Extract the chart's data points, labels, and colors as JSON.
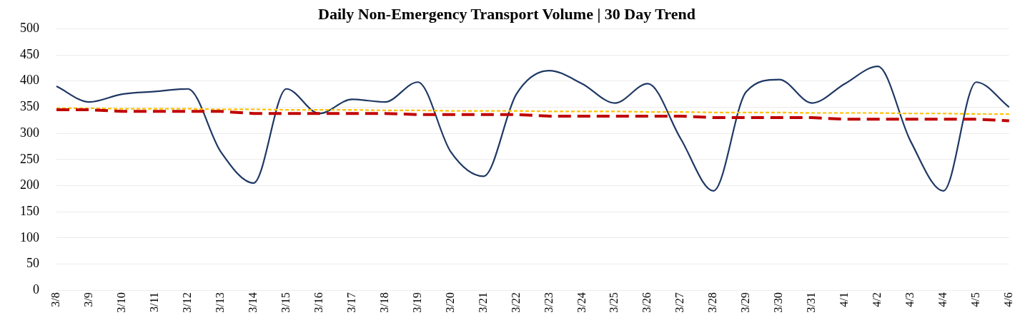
{
  "chart_data": {
    "type": "line",
    "title": "Daily Non-Emergency Transport Volume | 30 Day Trend",
    "categories": [
      "3/8",
      "3/9",
      "3/10",
      "3/11",
      "3/12",
      "3/13",
      "3/14",
      "3/15",
      "3/16",
      "3/17",
      "3/18",
      "3/19",
      "3/20",
      "3/21",
      "3/22",
      "3/23",
      "3/24",
      "3/25",
      "3/26",
      "3/27",
      "3/28",
      "3/29",
      "3/30",
      "3/31",
      "4/1",
      "4/2",
      "4/3",
      "4/4",
      "4/5",
      "4/6"
    ],
    "series": [
      {
        "color": "#1f3864",
        "line_style": "solid",
        "values": [
          390,
          360,
          375,
          380,
          385,
          265,
          205,
          385,
          338,
          365,
          360,
          398,
          265,
          218,
          375,
          420,
          395,
          358,
          395,
          290,
          190,
          380,
          403,
          358,
          395,
          428,
          285,
          190,
          398,
          350
        ]
      },
      {
        "color": "#ffc000",
        "line_style": "dotted",
        "values": [
          348,
          348,
          347,
          347,
          347,
          346,
          346,
          345,
          345,
          345,
          344,
          344,
          343,
          343,
          343,
          342,
          342,
          342,
          341,
          341,
          340,
          340,
          340,
          339,
          339,
          339,
          338,
          338,
          337,
          337
        ]
      },
      {
        "color": "#c00000",
        "line_style": "dashed",
        "values": [
          345,
          345,
          342,
          342,
          342,
          342,
          338,
          338,
          338,
          338,
          338,
          336,
          336,
          336,
          336,
          333,
          333,
          333,
          333,
          333,
          330,
          330,
          330,
          330,
          327,
          327,
          327,
          327,
          327,
          324
        ]
      }
    ],
    "ylim": [
      0,
      500
    ],
    "yticks": [
      0,
      50,
      100,
      150,
      200,
      250,
      300,
      350,
      400,
      450,
      500
    ],
    "grid": "y",
    "legend": false,
    "marker": "none"
  }
}
